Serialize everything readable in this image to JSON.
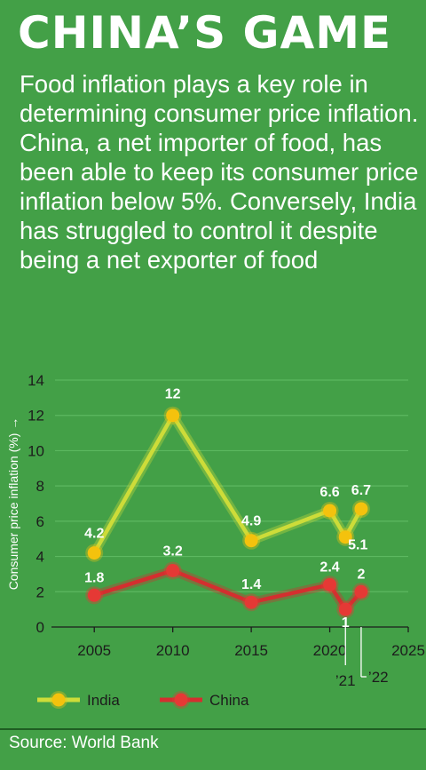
{
  "title": "CHINA’S GAME",
  "subtitle": "Food inflation plays a key role in determining consumer price inflation. China, a net importer of food, has been able to keep its consumer price inflation below 5%. Conversely, India has struggled to control it despite being a net exporter of food",
  "source": "Source: World Bank",
  "colors": {
    "background": "#43a047",
    "india_line": "#cddc39",
    "india_marker": "#f4c20d",
    "china_line": "#d32f2f",
    "china_marker": "#e53935",
    "grid": "#5cb860"
  },
  "chart_data": {
    "type": "line",
    "title": "",
    "ylabel": "Consumer price inflation (%) →",
    "xlabel": "",
    "ylim": [
      0,
      14
    ],
    "xlim": [
      2002.5,
      2025
    ],
    "yticks": [
      0,
      2,
      4,
      6,
      8,
      10,
      12,
      14
    ],
    "xticks": [
      2005,
      2010,
      2015,
      2020,
      2025
    ],
    "xtick_labels": [
      "2005",
      "2010",
      "2015",
      "2020",
      "2025"
    ],
    "extra_xtick_labels": [
      "’21",
      "’22"
    ],
    "grid": true,
    "legend_position": "bottom-left",
    "series": [
      {
        "name": "India",
        "x": [
          2005,
          2010,
          2015,
          2020,
          2021,
          2022
        ],
        "y": [
          4.2,
          12,
          4.9,
          6.6,
          5.1,
          6.7
        ],
        "labels": [
          "4.2",
          "12",
          "4.9",
          "6.6",
          "5.1",
          "6.7"
        ]
      },
      {
        "name": "China",
        "x": [
          2005,
          2010,
          2015,
          2020,
          2021,
          2022
        ],
        "y": [
          1.8,
          3.2,
          1.4,
          2.4,
          1,
          2
        ],
        "labels": [
          "1.8",
          "3.2",
          "1.4",
          "2.4",
          "1",
          "2"
        ]
      }
    ]
  }
}
